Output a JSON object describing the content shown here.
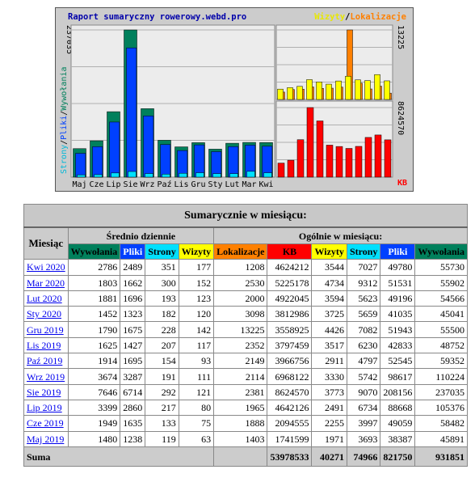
{
  "graph": {
    "title": "Raport sumaryczny rowerowy.webd.pro",
    "legend_right": {
      "part1": "Wizyty",
      "sep": "/",
      "part2": "Lokalizacje"
    },
    "left_axis_label": {
      "strony": "Strony",
      "s1": "/",
      "pliki": "Pliki",
      "s2": "/",
      "wywolania": "Wywołania"
    },
    "left_max_label": "237035",
    "right_top_label": "13225",
    "right_bottom_label": "8624570",
    "kb_label": "KB",
    "colors": {
      "wywolania": "#00805c",
      "pliki": "#0040ff",
      "strony": "#00e0ff",
      "wizyty": "#ffff00",
      "lokalizacje": "#ff8000",
      "kb": "#ff0000",
      "bg": "#ececec",
      "frame": "#cccccc"
    }
  },
  "chart_data": {
    "type": "bar",
    "categories": [
      "Maj",
      "Cze",
      "Lip",
      "Sie",
      "Wrz",
      "Paź",
      "Lis",
      "Gru",
      "Sty",
      "Lut",
      "Mar",
      "Kwi"
    ],
    "series": [
      {
        "name": "Wywołania",
        "values": [
          45891,
          58482,
          105376,
          237035,
          110224,
          59352,
          48752,
          55500,
          45041,
          54566,
          55902,
          55730
        ]
      },
      {
        "name": "Pliki",
        "values": [
          38387,
          49059,
          88668,
          208156,
          98617,
          52545,
          42833,
          51943,
          41035,
          49196,
          51531,
          49780
        ]
      },
      {
        "name": "Strony",
        "values": [
          3693,
          3997,
          6734,
          9070,
          5742,
          4797,
          6230,
          7082,
          5659,
          5623,
          9312,
          7027
        ]
      },
      {
        "name": "Wizyty",
        "values": [
          1971,
          2255,
          2491,
          3773,
          3330,
          2911,
          3517,
          4426,
          3725,
          3594,
          4734,
          3544
        ]
      },
      {
        "name": "Lokalizacje",
        "values": [
          1403,
          1888,
          1965,
          2381,
          2114,
          2149,
          2352,
          13225,
          3098,
          2000,
          2530,
          1208
        ]
      },
      {
        "name": "KB",
        "values": [
          1741599,
          2094555,
          4642126,
          8624570,
          6968122,
          3966756,
          3797459,
          3558925,
          3812986,
          4922045,
          5225178,
          4624212
        ]
      }
    ],
    "left_max": 237035,
    "right_top_max": 13225,
    "right_bottom_max": 8624570
  },
  "table": {
    "title": "Sumarycznie w miesiącu:",
    "miesiac_header": "Miesiąc",
    "daily_header": "Średnio dziennie",
    "total_header": "Ogólnie w miesiącu:",
    "daily_cols": [
      "Wywołania",
      "Pliki",
      "Strony",
      "Wizyty"
    ],
    "total_cols": [
      "Lokalizacje",
      "KB",
      "Wizyty",
      "Strony",
      "Pliki",
      "Wywołania"
    ],
    "col_colors": {
      "daily": [
        "#00805c",
        "#0040ff",
        "#00e0ff",
        "#ffff00"
      ],
      "total": [
        "#ff8000",
        "#ff0000",
        "#ffff00",
        "#00e0ff",
        "#0040ff",
        "#00805c"
      ]
    },
    "rows": [
      {
        "month": "Kwi 2020",
        "d": [
          "2786",
          "2489",
          "351",
          "177"
        ],
        "t": [
          "1208",
          "4624212",
          "3544",
          "7027",
          "49780",
          "55730"
        ]
      },
      {
        "month": "Mar 2020",
        "d": [
          "1803",
          "1662",
          "300",
          "152"
        ],
        "t": [
          "2530",
          "5225178",
          "4734",
          "9312",
          "51531",
          "55902"
        ]
      },
      {
        "month": "Lut 2020",
        "d": [
          "1881",
          "1696",
          "193",
          "123"
        ],
        "t": [
          "2000",
          "4922045",
          "3594",
          "5623",
          "49196",
          "54566"
        ]
      },
      {
        "month": "Sty 2020",
        "d": [
          "1452",
          "1323",
          "182",
          "120"
        ],
        "t": [
          "3098",
          "3812986",
          "3725",
          "5659",
          "41035",
          "45041"
        ]
      },
      {
        "month": "Gru 2019",
        "d": [
          "1790",
          "1675",
          "228",
          "142"
        ],
        "t": [
          "13225",
          "3558925",
          "4426",
          "7082",
          "51943",
          "55500"
        ]
      },
      {
        "month": "Lis 2019",
        "d": [
          "1625",
          "1427",
          "207",
          "117"
        ],
        "t": [
          "2352",
          "3797459",
          "3517",
          "6230",
          "42833",
          "48752"
        ]
      },
      {
        "month": "Paź 2019",
        "d": [
          "1914",
          "1695",
          "154",
          "93"
        ],
        "t": [
          "2149",
          "3966756",
          "2911",
          "4797",
          "52545",
          "59352"
        ]
      },
      {
        "month": "Wrz 2019",
        "d": [
          "3674",
          "3287",
          "191",
          "111"
        ],
        "t": [
          "2114",
          "6968122",
          "3330",
          "5742",
          "98617",
          "110224"
        ]
      },
      {
        "month": "Sie 2019",
        "d": [
          "7646",
          "6714",
          "292",
          "121"
        ],
        "t": [
          "2381",
          "8624570",
          "3773",
          "9070",
          "208156",
          "237035"
        ]
      },
      {
        "month": "Lip 2019",
        "d": [
          "3399",
          "2860",
          "217",
          "80"
        ],
        "t": [
          "1965",
          "4642126",
          "2491",
          "6734",
          "88668",
          "105376"
        ]
      },
      {
        "month": "Cze 2019",
        "d": [
          "1949",
          "1635",
          "133",
          "75"
        ],
        "t": [
          "1888",
          "2094555",
          "2255",
          "3997",
          "49059",
          "58482"
        ]
      },
      {
        "month": "Maj 2019",
        "d": [
          "1480",
          "1238",
          "119",
          "63"
        ],
        "t": [
          "1403",
          "1741599",
          "1971",
          "3693",
          "38387",
          "45891"
        ]
      }
    ],
    "sum_label": "Suma",
    "sum_values": [
      "53978533",
      "40271",
      "74966",
      "821750",
      "931851"
    ]
  }
}
